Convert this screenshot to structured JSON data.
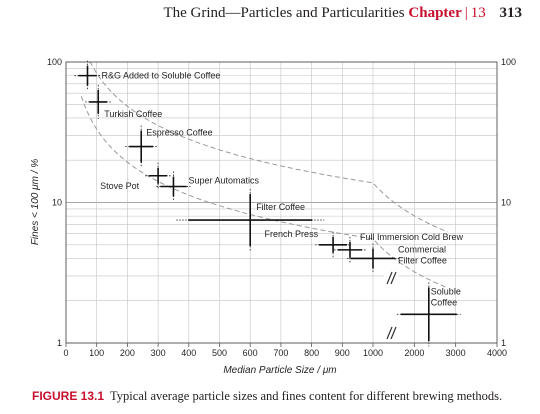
{
  "header": {
    "running_title": "The Grind—Particles and Particularities",
    "chapter_word": "Chapter",
    "separator": "|",
    "chapter_number": "13",
    "page_number": "313"
  },
  "caption": {
    "label": "FIGURE 13.1",
    "text": "Typical average particle sizes and fines content for different brewing methods."
  },
  "chart_data": {
    "type": "scatter",
    "title": "",
    "xlabel": "Median Particle Size / μm",
    "ylabel": "Fines < 100 μm / %",
    "y_scale": "log",
    "ylim": [
      1,
      100
    ],
    "y_ticks": [
      "1",
      "10",
      "100"
    ],
    "x_scale": "piecewise-linear (0–1000 then broken axis 1000–4000)",
    "x_ticks": [
      "0",
      "100",
      "200",
      "300",
      "400",
      "500",
      "600",
      "700",
      "800",
      "900",
      "1000",
      "2000",
      "3000",
      "4000"
    ],
    "grid": "major and minor",
    "axis_break_symbol": "//",
    "series": [
      {
        "label": "R&G Added to Soluble Coffee",
        "x": 70,
        "y": 80
      },
      {
        "label": "Turkish Coffee",
        "x": 105,
        "y": 52
      },
      {
        "label": "Espresso Coffee",
        "x": 245,
        "y": 25
      },
      {
        "label": "Stove Pot",
        "x": 300,
        "y": 15.5
      },
      {
        "label": "Super Automatics",
        "x": 350,
        "y": 13
      },
      {
        "label": "Filter Coffee",
        "x": 600,
        "y": 7.5
      },
      {
        "label": "French Press",
        "x": 870,
        "y": 5
      },
      {
        "label": "Full Immersion Cold Brew",
        "x": 925,
        "y": 4.6
      },
      {
        "label": "Commercial Filter Coffee",
        "x": 1000,
        "y": 4
      },
      {
        "label": "Soluble Coffee",
        "x": 2350,
        "y": 1.6
      }
    ]
  }
}
